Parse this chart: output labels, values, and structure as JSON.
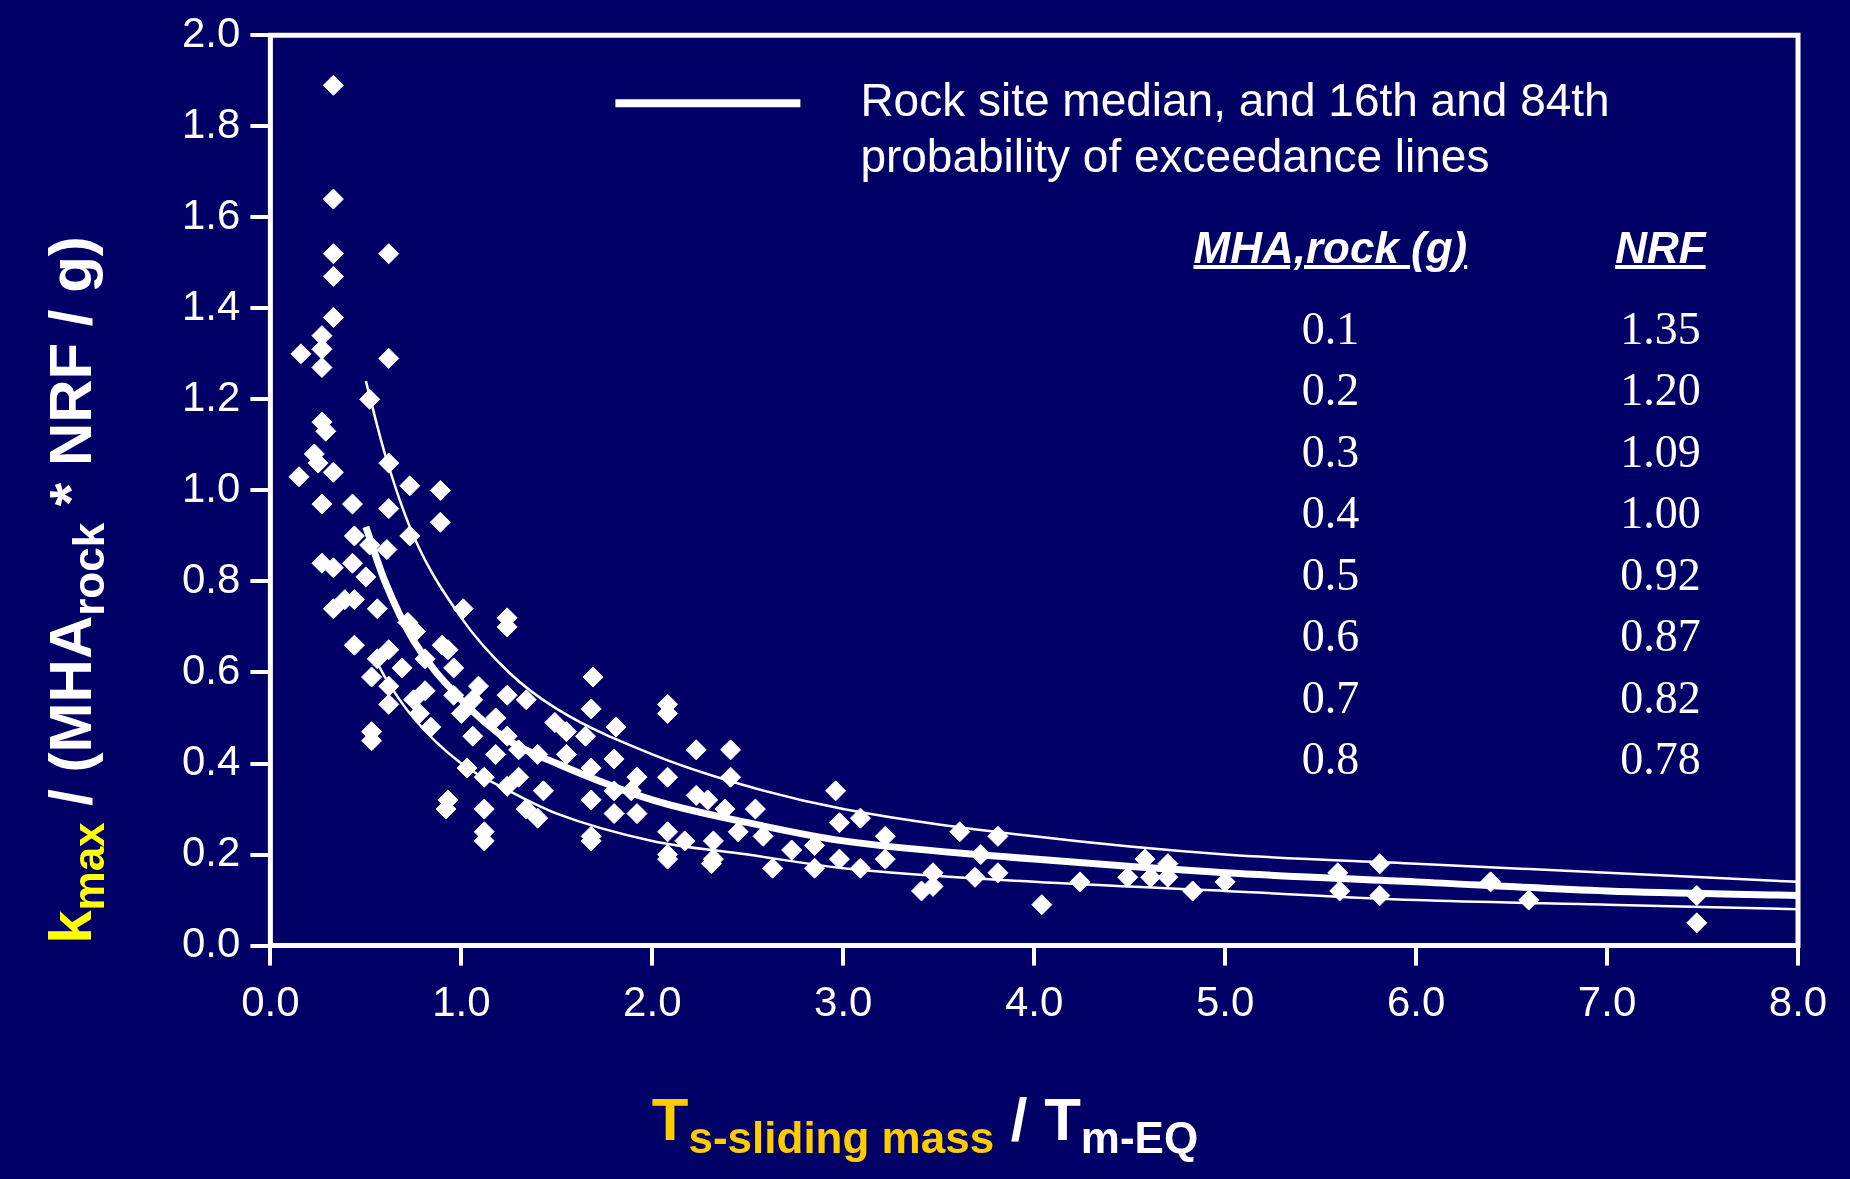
{
  "chart_data": {
    "type": "scatter",
    "xlabel": "T$_{s-sliding mass}$ / T$_{m-EQ}$",
    "ylabel": "k$_{max}$ / (MHA$_{rock}$ * NRF / g)",
    "xlim": [
      0,
      8
    ],
    "ylim": [
      0,
      2
    ],
    "xticks": [
      {
        "value": 0,
        "label": "0.0"
      },
      {
        "value": 1,
        "label": "1.0"
      },
      {
        "value": 2,
        "label": "2.0"
      },
      {
        "value": 3,
        "label": "3.0"
      },
      {
        "value": 4,
        "label": "4.0"
      },
      {
        "value": 5,
        "label": "5.0"
      },
      {
        "value": 6,
        "label": "6.0"
      },
      {
        "value": 7,
        "label": "7.0"
      },
      {
        "value": 8,
        "label": "8.0"
      }
    ],
    "yticks": [
      {
        "value": 0,
        "label": "0.0"
      },
      {
        "value": 0.2,
        "label": "0.2"
      },
      {
        "value": 0.4,
        "label": "0.4"
      },
      {
        "value": 0.6,
        "label": "0.6"
      },
      {
        "value": 0.8,
        "label": "0.8"
      },
      {
        "value": 1,
        "label": "1.0"
      },
      {
        "value": 1.2,
        "label": "1.2"
      },
      {
        "value": 1.4,
        "label": "1.4"
      },
      {
        "value": 1.6,
        "label": "1.6"
      },
      {
        "value": 1.8,
        "label": "1.8"
      },
      {
        "value": 2,
        "label": "2.0"
      }
    ],
    "legend": "top right",
    "marker": "diamond",
    "annotations": [
      "MHA,rock (g)",
      "NRF",
      "0.1",
      "1.35",
      "0.2",
      "1.20",
      "0.3",
      "1.09",
      "0.4",
      "1.00",
      "0.5",
      "0.92",
      "0.6",
      "0.87",
      "0.7",
      "0.82",
      "0.8",
      "0.78"
    ],
    "series": [
      {
        "color": "#ffffff",
        "x": [
          0.33,
          0.33,
          0.33,
          0.33,
          0.33,
          0.62,
          0.62,
          0.16,
          0.27,
          0.27,
          0.27,
          0.52,
          0.27,
          0.29,
          0.23,
          0.25,
          0.33,
          0.15,
          0.27,
          0.43,
          0.62,
          0.73,
          0.89,
          0.89,
          0.62,
          0.73,
          0.44,
          0.52,
          0.61,
          0.27,
          0.33,
          0.43,
          0.5,
          0.39,
          0.44,
          0.33,
          0.56,
          1.01,
          1.24,
          1.24,
          0.44,
          0.72,
          0.76,
          0.9,
          0.93,
          0.62,
          0.56,
          0.69,
          0.81,
          0.96,
          1.09,
          0.62,
          0.81,
          1.69,
          0.53,
          0.75,
          0.96,
          1.06,
          1.24,
          1.34,
          2.08,
          0.62,
          0.78,
          1.0,
          1.68,
          2.08,
          1.18,
          1.49,
          1.81,
          1.55,
          0.53,
          0.53,
          1.06,
          1.24,
          0.84,
          1.65,
          2.23,
          2.41,
          1.3,
          1.4,
          1.55,
          1.18,
          1.8,
          1.68,
          1.03,
          1.92,
          2.08,
          2.41,
          1.12,
          1.3,
          1.24,
          1.43,
          1.8,
          1.89,
          2.23,
          2.29,
          0.93,
          0.92,
          1.12,
          1.34,
          1.4,
          2.38,
          2.54,
          2.96,
          1.68,
          1.8,
          1.92,
          1.12,
          1.12,
          1.68,
          1.68,
          2.08,
          2.08,
          2.08,
          2.17,
          2.32,
          2.32,
          2.31,
          2.45,
          2.58,
          2.63,
          2.73,
          2.85,
          2.85,
          2.98,
          2.98,
          3.09,
          3.09,
          3.22,
          3.22,
          3.41,
          3.47,
          3.47,
          3.61,
          3.72,
          3.69,
          3.81,
          3.81,
          4.04,
          4.24,
          4.49,
          4.58,
          4.61,
          4.7,
          4.7,
          4.83,
          5.0,
          5.59,
          5.6,
          5.81,
          5.81,
          6.39,
          6.59,
          7.47,
          7.47
        ],
        "values": [
          1.89,
          1.64,
          1.52,
          1.47,
          1.38,
          1.52,
          1.29,
          1.3,
          1.34,
          1.31,
          1.27,
          1.2,
          1.15,
          1.13,
          1.08,
          1.06,
          1.04,
          1.03,
          0.97,
          0.97,
          1.06,
          1.01,
          1.0,
          0.93,
          0.96,
          0.9,
          0.9,
          0.88,
          0.87,
          0.84,
          0.83,
          0.84,
          0.81,
          0.76,
          0.76,
          0.74,
          0.74,
          0.74,
          0.72,
          0.7,
          0.66,
          0.71,
          0.69,
          0.66,
          0.65,
          0.65,
          0.63,
          0.61,
          0.63,
          0.61,
          0.57,
          0.57,
          0.56,
          0.59,
          0.59,
          0.54,
          0.55,
          0.54,
          0.55,
          0.54,
          0.53,
          0.53,
          0.51,
          0.51,
          0.52,
          0.51,
          0.5,
          0.49,
          0.48,
          0.47,
          0.47,
          0.45,
          0.46,
          0.46,
          0.48,
          0.46,
          0.43,
          0.43,
          0.43,
          0.42,
          0.42,
          0.42,
          0.41,
          0.39,
          0.39,
          0.37,
          0.37,
          0.37,
          0.37,
          0.37,
          0.35,
          0.34,
          0.34,
          0.34,
          0.33,
          0.32,
          0.32,
          0.3,
          0.3,
          0.3,
          0.28,
          0.3,
          0.3,
          0.34,
          0.32,
          0.29,
          0.29,
          0.25,
          0.23,
          0.24,
          0.23,
          0.25,
          0.2,
          0.19,
          0.23,
          0.23,
          0.19,
          0.18,
          0.25,
          0.24,
          0.17,
          0.21,
          0.22,
          0.17,
          0.27,
          0.19,
          0.28,
          0.17,
          0.24,
          0.19,
          0.12,
          0.13,
          0.16,
          0.25,
          0.2,
          0.15,
          0.24,
          0.16,
          0.09,
          0.14,
          0.15,
          0.19,
          0.15,
          0.18,
          0.15,
          0.12,
          0.14,
          0.16,
          0.12,
          0.18,
          0.11,
          0.14,
          0.1,
          0.11,
          0.05
        ]
      },
      {
        "type": "line",
        "name": "Rock site median, and 16th and 84th probability of exceedance lines",
        "color": "#ffffff",
        "marker": "none",
        "x": [
          0.5,
          0.6,
          0.75,
          1,
          1.25,
          1.5,
          2,
          2.5,
          3,
          4,
          5,
          6,
          7,
          8
        ],
        "values": [
          0.92,
          0.8,
          0.67,
          0.54,
          0.45,
          0.4,
          0.32,
          0.27,
          0.23,
          0.19,
          0.16,
          0.14,
          0.12,
          0.11
        ]
      },
      {
        "type": "line",
        "color": "#ffffff",
        "marker": "none",
        "x": [
          0.5,
          0.6,
          0.75,
          1,
          1.25,
          1.5,
          2,
          2.5,
          3,
          4,
          5,
          6,
          7,
          8
        ],
        "values": [
          1.24,
          1.08,
          0.9,
          0.72,
          0.6,
          0.52,
          0.42,
          0.35,
          0.3,
          0.24,
          0.2,
          0.18,
          0.16,
          0.14
        ]
      },
      {
        "type": "line",
        "color": "#ffffff",
        "marker": "none",
        "x": [
          0.55,
          0.6,
          0.75,
          1,
          1.25,
          1.5,
          2,
          2.5,
          3,
          4,
          5,
          6,
          7,
          8
        ],
        "values": [
          0.63,
          0.59,
          0.5,
          0.4,
          0.34,
          0.29,
          0.23,
          0.2,
          0.17,
          0.14,
          0.12,
          0.1,
          0.09,
          0.08
        ]
      }
    ]
  }
}
